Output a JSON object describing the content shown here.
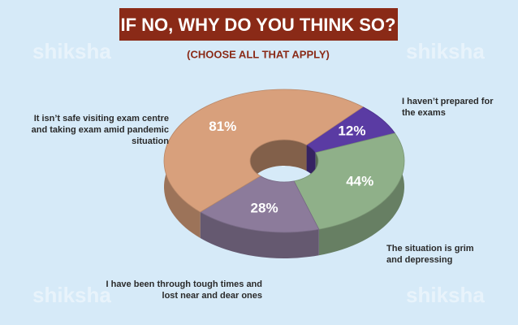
{
  "chart_data": {
    "type": "donut",
    "title": "IF NO, WHY DO YOU THINK SO?",
    "subtitle": "(CHOOSE ALL THAT APPLY)",
    "watermark": "shiksha",
    "categories": [
      "I haven’t prepared for the exams",
      "The situation is grim and depressing",
      "I have been through tough times and lost near and dear ones",
      "It isn’t safe visiting exam centre and taking exam amid pandemic situation"
    ],
    "values": [
      12,
      44,
      28,
      81
    ],
    "value_labels": [
      "12%",
      "44%",
      "28%",
      "81%"
    ],
    "colors": [
      "#5a3ba3",
      "#8fb089",
      "#8c7b9b",
      "#d8a07c"
    ]
  }
}
